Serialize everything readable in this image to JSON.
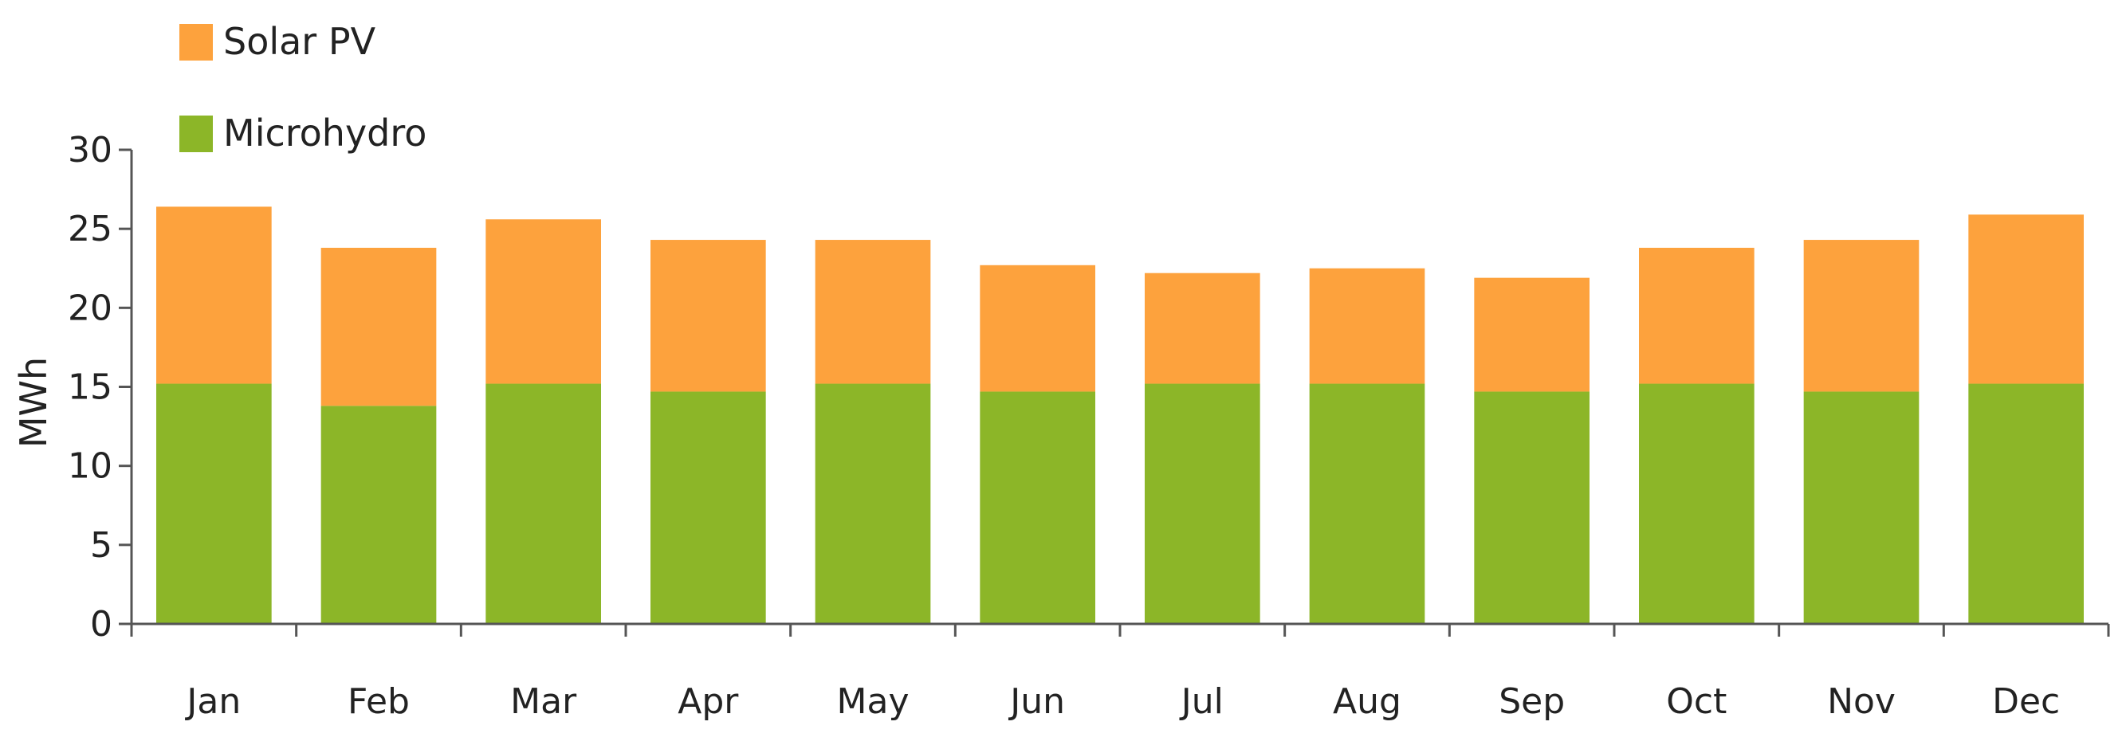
{
  "chart_data": {
    "type": "bar",
    "stacked": true,
    "title": "",
    "xlabel": "",
    "ylabel": "MWh",
    "ylim": [
      0,
      30
    ],
    "yticks": [
      0,
      5,
      10,
      15,
      20,
      25,
      30
    ],
    "grid": false,
    "legend_position": "top-left",
    "categories": [
      "Jan",
      "Feb",
      "Mar",
      "Apr",
      "May",
      "Jun",
      "Jul",
      "Aug",
      "Sep",
      "Oct",
      "Nov",
      "Dec"
    ],
    "series": [
      {
        "name": "Microhydro",
        "color": "#8cb628",
        "values": [
          15.2,
          13.8,
          15.2,
          14.7,
          15.2,
          14.7,
          15.2,
          15.2,
          14.7,
          15.2,
          14.7,
          15.2
        ]
      },
      {
        "name": "Solar PV",
        "color": "#fda23d",
        "values": [
          11.2,
          10.0,
          10.4,
          9.6,
          9.1,
          8.0,
          7.0,
          7.3,
          7.2,
          8.6,
          9.6,
          10.7
        ]
      }
    ]
  }
}
